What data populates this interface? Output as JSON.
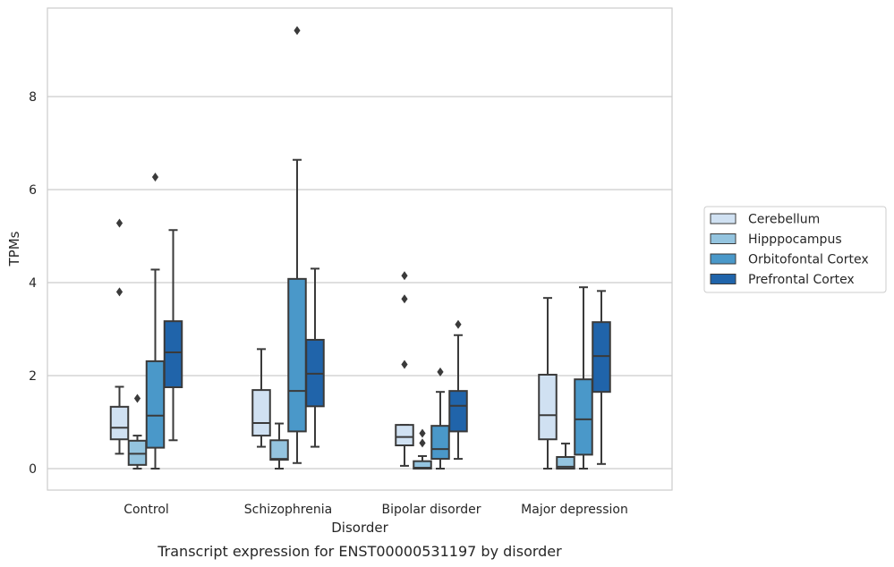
{
  "chart_data": {
    "type": "box",
    "title": "",
    "caption": "Transcript expression for ENST00000531197 by disorder",
    "xlabel": "Disorder",
    "ylabel": "TPMs",
    "ylim": [
      -0.45,
      9.9
    ],
    "yticks": [
      0,
      2,
      4,
      6,
      8
    ],
    "grid": "horizontal",
    "legend_position": "right",
    "categories": [
      "Control",
      "Schizophrenia",
      "Bipolar disorder",
      "Major depression"
    ],
    "series": [
      {
        "name": "Cerebellum",
        "color": "#d0e1f2",
        "boxes": [
          {
            "whisker_low": 0.32,
            "q1": 0.63,
            "median": 0.88,
            "q3": 1.33,
            "whisker_high": 1.76,
            "outliers": [
              3.8,
              5.28
            ]
          },
          {
            "whisker_low": 0.47,
            "q1": 0.71,
            "median": 0.98,
            "q3": 1.69,
            "whisker_high": 2.57,
            "outliers": []
          },
          {
            "whisker_low": 0.06,
            "q1": 0.5,
            "median": 0.68,
            "q3": 0.94,
            "whisker_high": 0.94,
            "outliers": [
              2.24,
              3.65,
              4.15
            ]
          },
          {
            "whisker_low": 0.0,
            "q1": 0.63,
            "median": 1.15,
            "q3": 2.02,
            "whisker_high": 3.67,
            "outliers": []
          }
        ]
      },
      {
        "name": "Hipppocampus",
        "color": "#94c4df",
        "boxes": [
          {
            "whisker_low": 0.0,
            "q1": 0.08,
            "median": 0.32,
            "q3": 0.6,
            "whisker_high": 0.71,
            "outliers": [
              1.51
            ]
          },
          {
            "whisker_low": 0.0,
            "q1": 0.19,
            "median": 0.21,
            "q3": 0.61,
            "whisker_high": 0.97,
            "outliers": []
          },
          {
            "whisker_low": 0.0,
            "q1": 0.0,
            "median": 0.02,
            "q3": 0.16,
            "whisker_high": 0.27,
            "outliers": [
              0.55,
              0.76
            ]
          },
          {
            "whisker_low": 0.0,
            "q1": 0.0,
            "median": 0.04,
            "q3": 0.25,
            "whisker_high": 0.54,
            "outliers": []
          }
        ]
      },
      {
        "name": "Orbitofontal Cortex",
        "color": "#4a98c9",
        "boxes": [
          {
            "whisker_low": 0.0,
            "q1": 0.45,
            "median": 1.14,
            "q3": 2.31,
            "whisker_high": 4.28,
            "outliers": [
              6.27
            ]
          },
          {
            "whisker_low": 0.12,
            "q1": 0.8,
            "median": 1.67,
            "q3": 4.08,
            "whisker_high": 6.64,
            "outliers": [
              9.42
            ]
          },
          {
            "whisker_low": 0.0,
            "q1": 0.21,
            "median": 0.42,
            "q3": 0.92,
            "whisker_high": 1.65,
            "outliers": [
              2.08
            ]
          },
          {
            "whisker_low": 0.0,
            "q1": 0.3,
            "median": 1.06,
            "q3": 1.92,
            "whisker_high": 3.9,
            "outliers": []
          }
        ]
      },
      {
        "name": "Prefrontal Cortex",
        "color": "#2064aa",
        "boxes": [
          {
            "whisker_low": 0.61,
            "q1": 1.75,
            "median": 2.5,
            "q3": 3.17,
            "whisker_high": 5.13,
            "outliers": []
          },
          {
            "whisker_low": 0.47,
            "q1": 1.34,
            "median": 2.04,
            "q3": 2.77,
            "whisker_high": 4.3,
            "outliers": []
          },
          {
            "whisker_low": 0.21,
            "q1": 0.8,
            "median": 1.35,
            "q3": 1.67,
            "whisker_high": 2.87,
            "outliers": [
              3.1
            ]
          },
          {
            "whisker_low": 0.1,
            "q1": 1.65,
            "median": 2.42,
            "q3": 3.15,
            "whisker_high": 3.82,
            "outliers": []
          }
        ]
      }
    ]
  }
}
